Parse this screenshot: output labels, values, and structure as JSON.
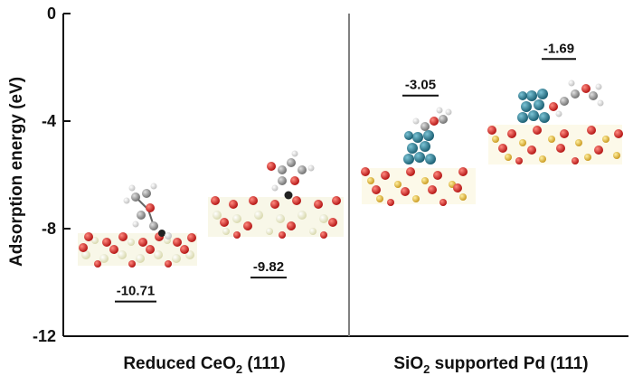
{
  "chart_data": {
    "type": "bar",
    "ylabel": "Adsorption energy (eV)",
    "ylim": [
      -12,
      0
    ],
    "yticks": [
      0,
      -4,
      -8,
      -12
    ],
    "panels": [
      {
        "label_parts": {
          "before": "Reduced CeO",
          "sub": "2",
          "after": " (111)"
        },
        "values": [
          -10.71,
          -9.82
        ]
      },
      {
        "label_parts": {
          "before": "SiO",
          "sub": "2",
          "after": " supported Pd (111)"
        },
        "values": [
          -3.05,
          -1.69
        ]
      }
    ]
  },
  "colors": {
    "axis": "#111111",
    "divider": "#808080",
    "oxygen": "#d11a1a",
    "cerium": "#eeeec8",
    "silicon": "#e6b423",
    "palladium": "#1f6f86",
    "carbon": "#8c8c8c",
    "hydrogen": "#f4f4f4",
    "vacancy": "#222222"
  }
}
